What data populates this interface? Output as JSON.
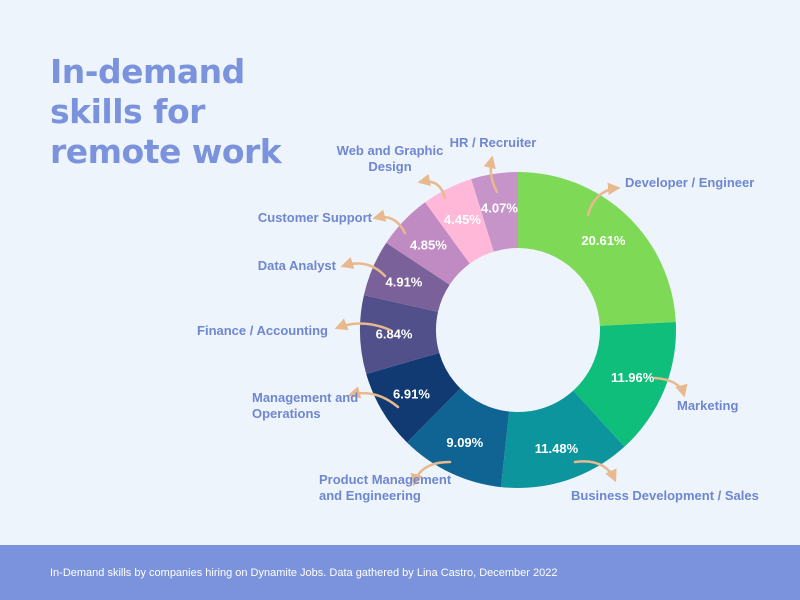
{
  "header": {
    "title_lines": [
      "In-demand",
      "skills for",
      "remote work"
    ]
  },
  "chart_data": {
    "type": "pie",
    "variant": "donut",
    "title": "In-demand skills for remote work",
    "start": "12 o'clock, clockwise",
    "slices": [
      {
        "label": "Developer / Engineer",
        "value": 20.61,
        "display": "20.61%",
        "color": "#7ed957",
        "label_lines": [
          "Developer / Engineer"
        ]
      },
      {
        "label": "Marketing",
        "value": 11.96,
        "display": "11.96%",
        "color": "#0fbe7a",
        "label_lines": [
          "Marketing"
        ]
      },
      {
        "label": "Business Development / Sales",
        "value": 11.48,
        "display": "11.48%",
        "color": "#0d959d",
        "label_lines": [
          "Business Development / Sales"
        ]
      },
      {
        "label": "Product Management and Engineering",
        "value": 9.09,
        "display": "9.09%",
        "color": "#0f6494",
        "label_lines": [
          "Product Management",
          "and Engineering"
        ]
      },
      {
        "label": "Management and Operations",
        "value": 6.91,
        "display": "6.91%",
        "color": "#113a73",
        "label_lines": [
          "Management and",
          "Operations"
        ]
      },
      {
        "label": "Finance / Accounting",
        "value": 6.84,
        "display": "6.84%",
        "color": "#51508a",
        "label_lines": [
          "Finance / Accounting"
        ]
      },
      {
        "label": "Data Analyst",
        "value": 4.91,
        "display": "4.91%",
        "color": "#7b6199",
        "label_lines": [
          "Data Analyst"
        ]
      },
      {
        "label": "Customer Support",
        "value": 4.85,
        "display": "4.85%",
        "color": "#c08ac2",
        "label_lines": [
          "Customer Support"
        ]
      },
      {
        "label": "Web and Graphic Design",
        "value": 4.45,
        "display": "4.45%",
        "color": "#ffb8d8",
        "label_lines": [
          "Web and Graphic",
          "Design"
        ]
      },
      {
        "label": "HR / Recruiter",
        "value": 4.07,
        "display": "4.07%",
        "color": "#c694c9",
        "label_lines": [
          "HR / Recruiter"
        ]
      }
    ]
  },
  "footer": {
    "source": "In-Demand skills by companies hiring on Dynamite Jobs. Data gathered by Lina Castro, December 2022"
  },
  "colors": {
    "background": "#eef4fc",
    "accent": "#7b93dc",
    "label_text": "#6f86d0",
    "arrow": "#e8b98f"
  }
}
